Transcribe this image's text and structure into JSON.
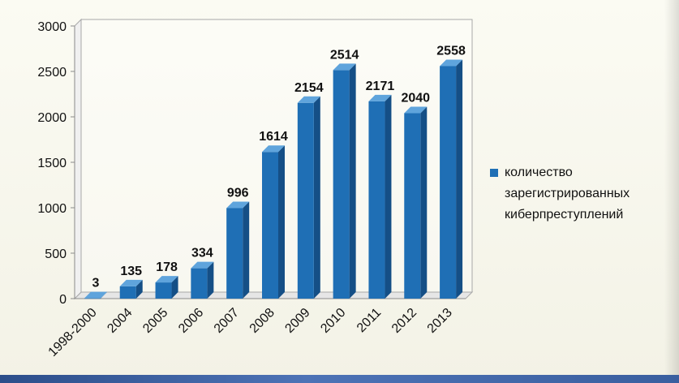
{
  "chart_data": {
    "type": "bar",
    "categories": [
      "1998-2000",
      "2004",
      "2005",
      "2006",
      "2007",
      "2008",
      "2009",
      "2010",
      "2011",
      "2012",
      "2013"
    ],
    "series": [
      {
        "name": "количество зарегистрированных киберпреступлений",
        "values": [
          3,
          135,
          178,
          334,
          996,
          1614,
          2154,
          2514,
          2171,
          2040,
          2558
        ]
      }
    ],
    "data_labels": [
      "3",
      "135",
      "178",
      "334",
      "996",
      "1614",
      "2154",
      "2514",
      "2171",
      "2040",
      "2558"
    ],
    "y_ticks": [
      "0",
      "500",
      "1000",
      "1500",
      "2000",
      "2500",
      "3000"
    ],
    "ylim": [
      0,
      3000
    ],
    "grid": false,
    "legend_position": "right",
    "bar_color": "#1f6fb5",
    "bar_top_color": "#5fa4dc",
    "bar_side_color": "#154f86",
    "style": "3d-columns"
  },
  "legend": {
    "lines": [
      "количество",
      "зарегистрированных",
      "киберпреступлений"
    ]
  }
}
